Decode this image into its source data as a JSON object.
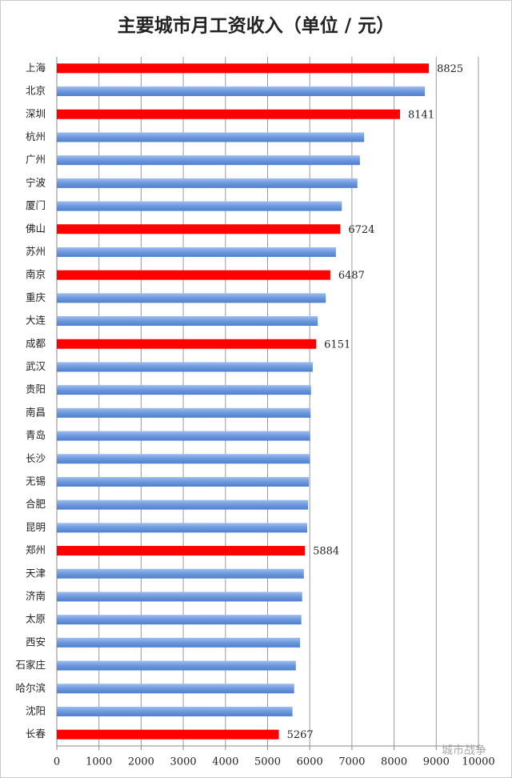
{
  "chart_data": {
    "type": "hbar",
    "title": "主要城市月工资收入（单位 / 元）",
    "categories": [
      "上海",
      "北京",
      "深圳",
      "杭州",
      "广州",
      "宁波",
      "厦门",
      "佛山",
      "苏州",
      "南京",
      "重庆",
      "大连",
      "成都",
      "武汉",
      "贵阳",
      "南昌",
      "青岛",
      "长沙",
      "无锡",
      "合肥",
      "昆明",
      "郑州",
      "天津",
      "济南",
      "太原",
      "西安",
      "石家庄",
      "哈尔滨",
      "沈阳",
      "长春"
    ],
    "values": [
      8825,
      8730,
      8141,
      7290,
      7190,
      7130,
      6760,
      6724,
      6620,
      6487,
      6380,
      6190,
      6151,
      6070,
      6030,
      6020,
      6010,
      6000,
      5980,
      5960,
      5940,
      5884,
      5860,
      5820,
      5800,
      5770,
      5670,
      5630,
      5590,
      5267
    ],
    "value_labels": [
      "8825",
      null,
      "8141",
      null,
      null,
      null,
      null,
      "6724",
      null,
      "6487",
      null,
      null,
      "6151",
      null,
      null,
      null,
      null,
      null,
      null,
      null,
      null,
      "5884",
      null,
      null,
      null,
      null,
      null,
      null,
      null,
      "5267"
    ],
    "colors": [
      "#ff0000",
      "#6d98dd",
      "#ff0000",
      "#6d98dd",
      "#6d98dd",
      "#6d98dd",
      "#6d98dd",
      "#ff0000",
      "#6d98dd",
      "#ff0000",
      "#6d98dd",
      "#6d98dd",
      "#ff0000",
      "#6d98dd",
      "#6d98dd",
      "#6d98dd",
      "#6d98dd",
      "#6d98dd",
      "#6d98dd",
      "#6d98dd",
      "#6d98dd",
      "#ff0000",
      "#6d98dd",
      "#6d98dd",
      "#6d98dd",
      "#6d98dd",
      "#6d98dd",
      "#6d98dd",
      "#6d98dd",
      "#ff0000"
    ],
    "xlim": [
      0,
      10000
    ],
    "xticks": [
      0,
      1000,
      2000,
      3000,
      4000,
      5000,
      6000,
      7000,
      8000,
      9000,
      10000
    ],
    "grid": true,
    "watermark": "城市战争"
  }
}
